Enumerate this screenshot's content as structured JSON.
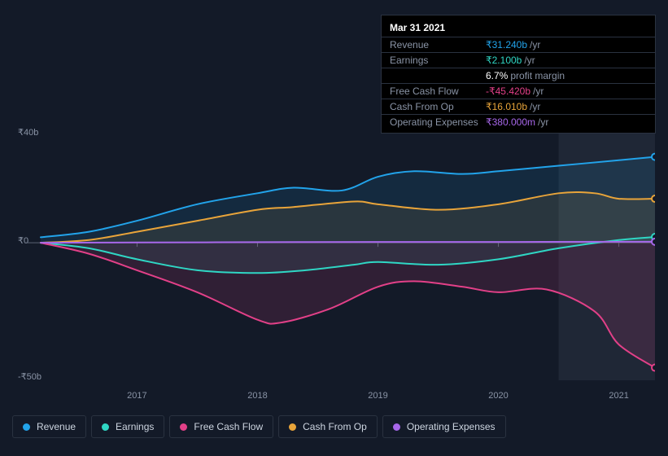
{
  "chart": {
    "type": "area",
    "background_color": "#131a28",
    "grid_color": "#2a3240",
    "text_color": "#8a94a6",
    "font_size": 11,
    "xlim": [
      2016.2,
      2021.3
    ],
    "ylim": [
      -50,
      40
    ],
    "y_ticks": [
      {
        "value": 40,
        "label": "₹40b"
      },
      {
        "value": 0,
        "label": "₹0"
      },
      {
        "value": -50,
        "label": "-₹50b"
      }
    ],
    "x_ticks": [
      2017,
      2018,
      2019,
      2020,
      2021
    ],
    "hover_band": {
      "start": 2020.5,
      "end": 2021.3,
      "color": "#2a3342",
      "opacity": 0.55
    },
    "series": [
      {
        "key": "revenue",
        "label": "Revenue",
        "color": "#22a3ea",
        "fill_opacity": 0.12,
        "line_width": 2,
        "points": [
          [
            2016.2,
            2
          ],
          [
            2016.6,
            4
          ],
          [
            2017,
            8
          ],
          [
            2017.5,
            14
          ],
          [
            2018,
            18
          ],
          [
            2018.3,
            20
          ],
          [
            2018.7,
            19
          ],
          [
            2019,
            24
          ],
          [
            2019.3,
            26
          ],
          [
            2019.7,
            25
          ],
          [
            2020,
            26
          ],
          [
            2020.5,
            28
          ],
          [
            2021,
            30
          ],
          [
            2021.3,
            31.24
          ]
        ]
      },
      {
        "key": "earnings",
        "label": "Earnings",
        "color": "#2fd6c4",
        "fill_opacity": 0.1,
        "line_width": 2,
        "points": [
          [
            2016.2,
            0
          ],
          [
            2016.6,
            -2
          ],
          [
            2017,
            -6
          ],
          [
            2017.5,
            -10
          ],
          [
            2018,
            -11
          ],
          [
            2018.4,
            -10
          ],
          [
            2018.8,
            -8
          ],
          [
            2019,
            -7
          ],
          [
            2019.5,
            -8
          ],
          [
            2020,
            -6
          ],
          [
            2020.5,
            -2
          ],
          [
            2021,
            1
          ],
          [
            2021.3,
            2.1
          ]
        ]
      },
      {
        "key": "fcf",
        "label": "Free Cash Flow",
        "color": "#e24088",
        "fill_opacity": 0.14,
        "line_width": 2,
        "points": [
          [
            2016.2,
            0
          ],
          [
            2016.6,
            -4
          ],
          [
            2017,
            -10
          ],
          [
            2017.5,
            -18
          ],
          [
            2018,
            -28
          ],
          [
            2018.2,
            -29
          ],
          [
            2018.6,
            -24
          ],
          [
            2019,
            -16
          ],
          [
            2019.3,
            -14
          ],
          [
            2019.7,
            -16
          ],
          [
            2020,
            -18
          ],
          [
            2020.4,
            -17
          ],
          [
            2020.8,
            -25
          ],
          [
            2021,
            -37
          ],
          [
            2021.3,
            -45.42
          ]
        ]
      },
      {
        "key": "cfo",
        "label": "Cash From Op",
        "color": "#e8a43a",
        "fill_opacity": 0.1,
        "line_width": 2,
        "points": [
          [
            2016.2,
            0
          ],
          [
            2016.6,
            1
          ],
          [
            2017,
            4
          ],
          [
            2017.5,
            8
          ],
          [
            2018,
            12
          ],
          [
            2018.3,
            13
          ],
          [
            2018.8,
            15
          ],
          [
            2019,
            14
          ],
          [
            2019.5,
            12
          ],
          [
            2020,
            14
          ],
          [
            2020.5,
            18
          ],
          [
            2020.8,
            18
          ],
          [
            2021,
            16
          ],
          [
            2021.3,
            16.01
          ]
        ]
      },
      {
        "key": "opex",
        "label": "Operating Expenses",
        "color": "#a767ea",
        "fill_opacity": 0.08,
        "line_width": 2,
        "points": [
          [
            2016.2,
            0
          ],
          [
            2017,
            0.1
          ],
          [
            2018,
            0.2
          ],
          [
            2019,
            0.3
          ],
          [
            2020,
            0.3
          ],
          [
            2021,
            0.35
          ],
          [
            2021.3,
            0.38
          ]
        ]
      }
    ]
  },
  "tooltip": {
    "date": "Mar 31 2021",
    "rows": [
      {
        "label": "Revenue",
        "value": "₹31.240b",
        "unit": "/yr",
        "color": "#22a3ea"
      },
      {
        "label": "Earnings",
        "value": "₹2.100b",
        "unit": "/yr",
        "color": "#2fd6c4"
      },
      {
        "label": "",
        "value": "6.7%",
        "unit": "profit margin",
        "color": "#ffffff"
      },
      {
        "label": "Free Cash Flow",
        "value": "-₹45.420b",
        "unit": "/yr",
        "color": "#e24088"
      },
      {
        "label": "Cash From Op",
        "value": "₹16.010b",
        "unit": "/yr",
        "color": "#e8a43a"
      },
      {
        "label": "Operating Expenses",
        "value": "₹380.000m",
        "unit": "/yr",
        "color": "#a767ea"
      }
    ]
  },
  "legend": {
    "items": [
      {
        "label": "Revenue",
        "color": "#22a3ea"
      },
      {
        "label": "Earnings",
        "color": "#2fd6c4"
      },
      {
        "label": "Free Cash Flow",
        "color": "#e24088"
      },
      {
        "label": "Cash From Op",
        "color": "#e8a43a"
      },
      {
        "label": "Operating Expenses",
        "color": "#a767ea"
      }
    ]
  }
}
